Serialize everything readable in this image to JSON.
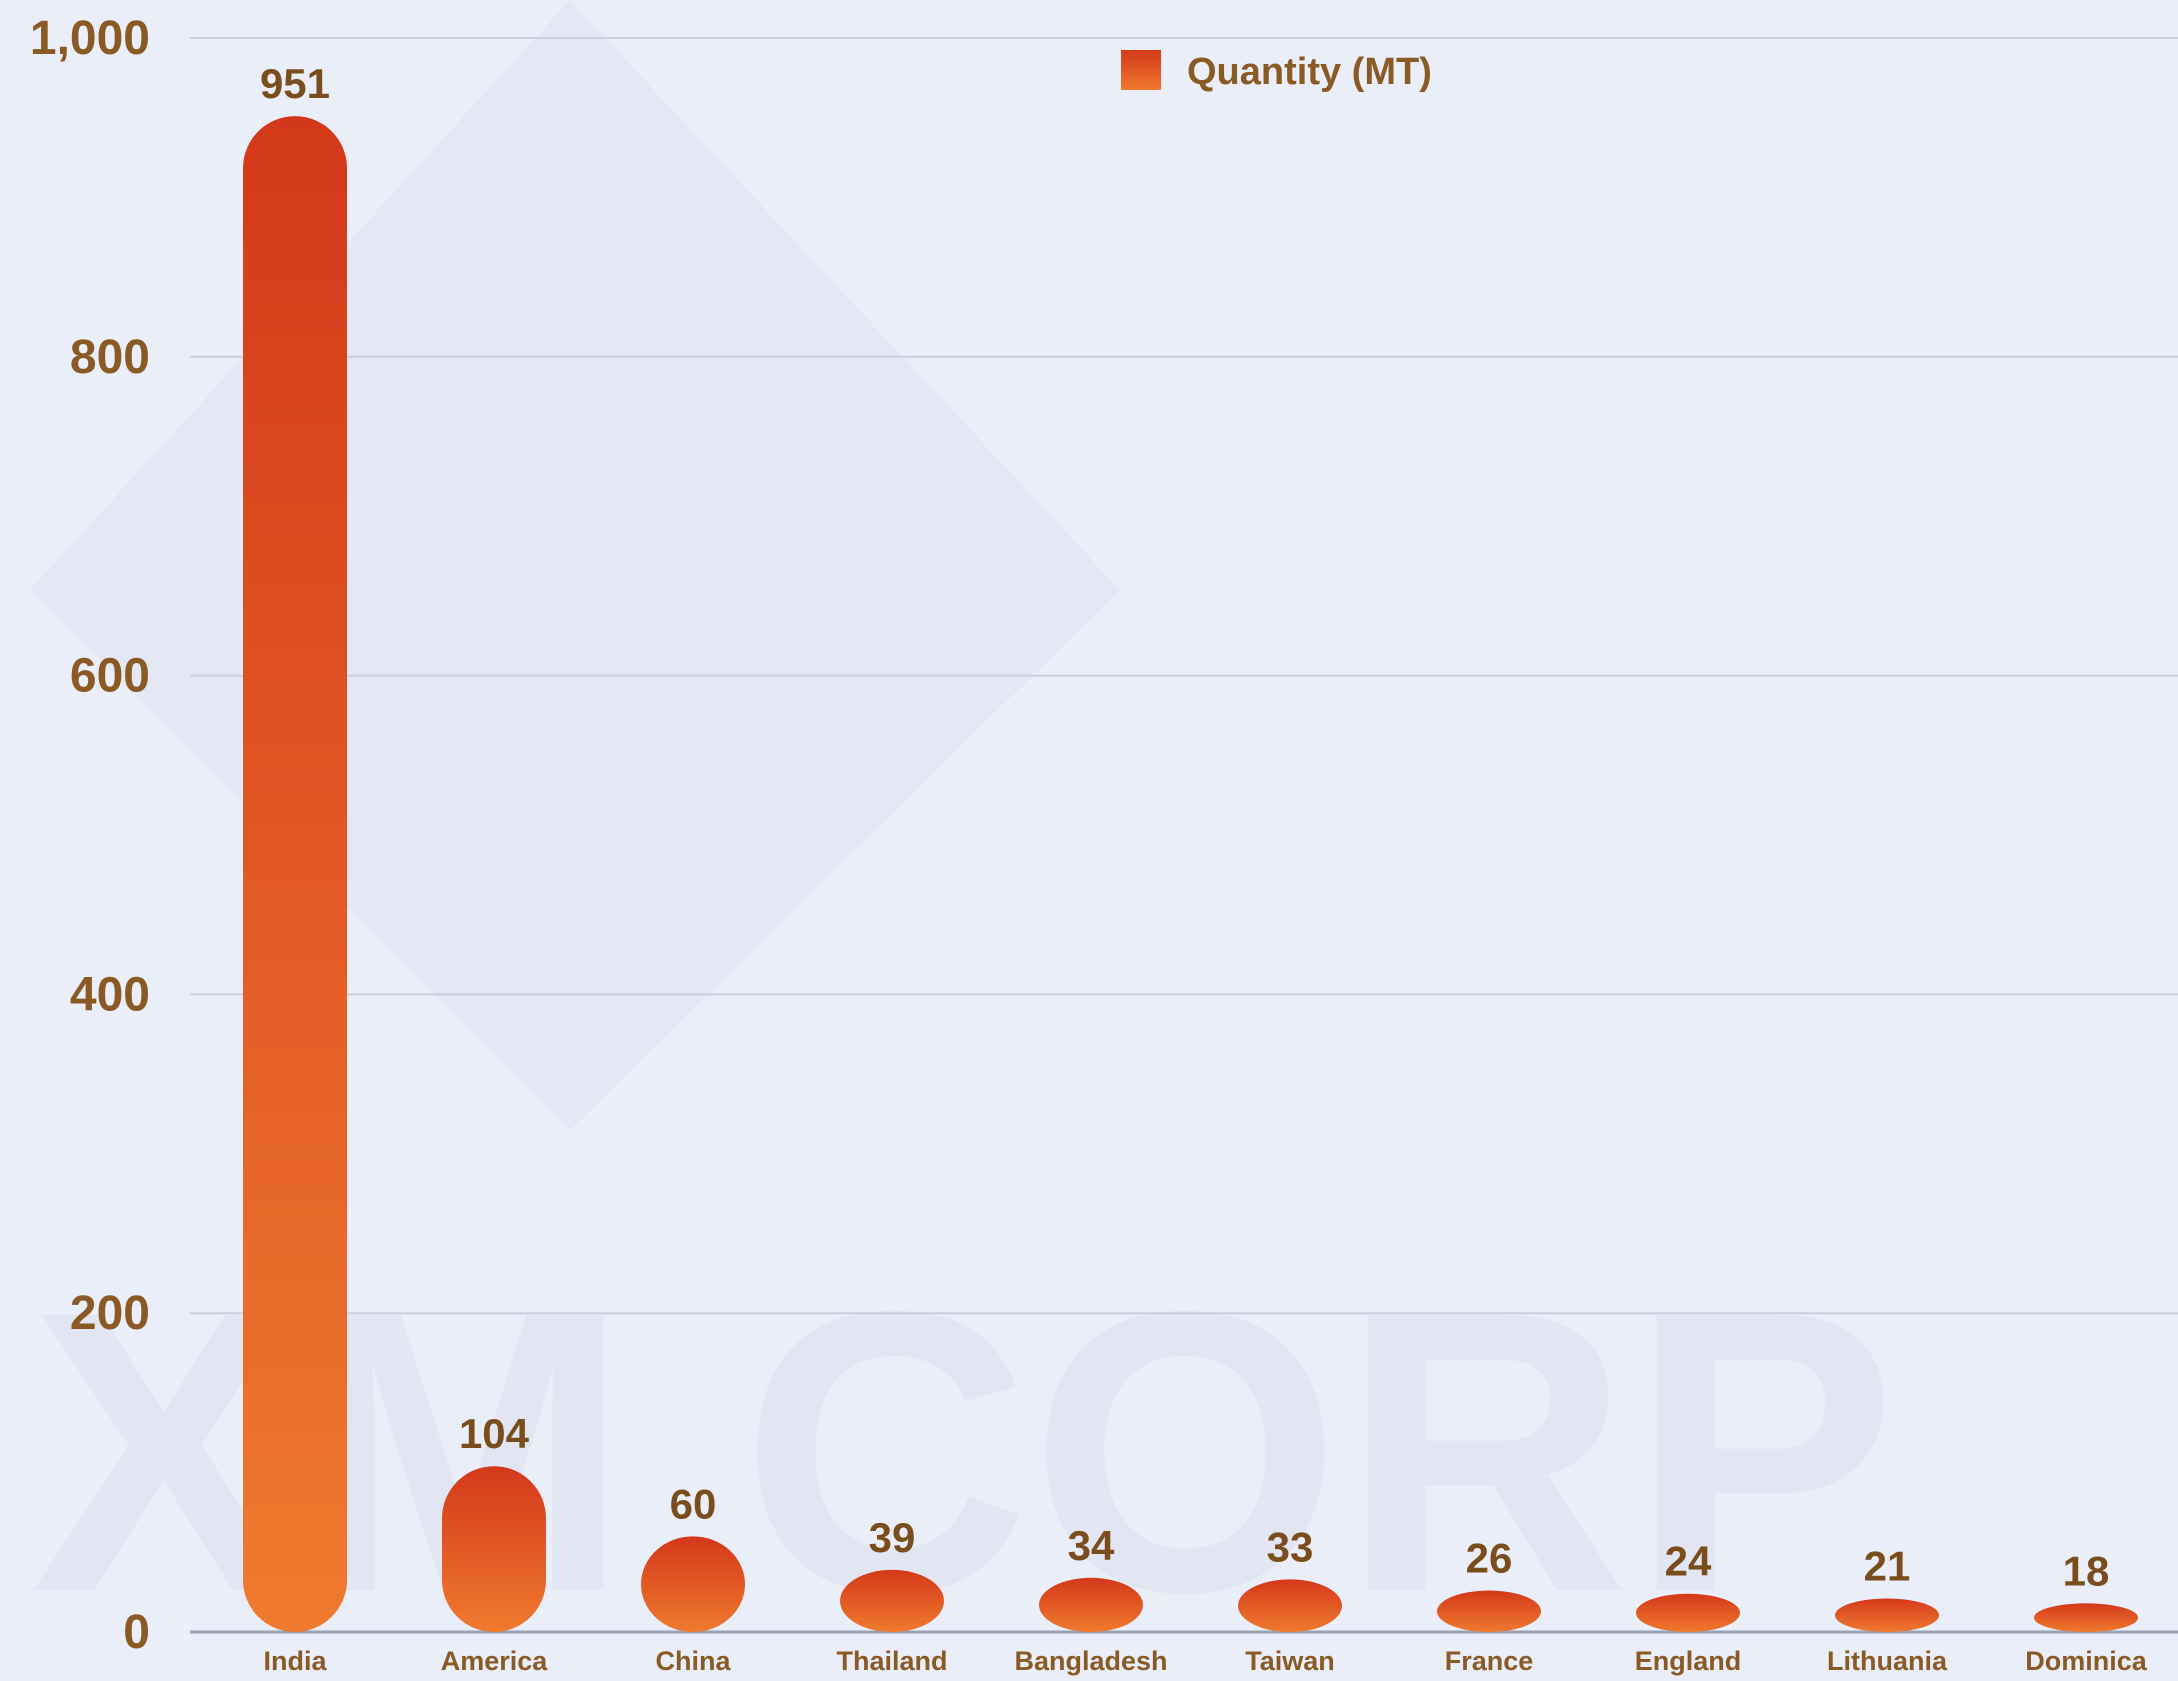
{
  "watermark": {
    "text": "XM CORP"
  },
  "colors": {
    "background": "#eaeef9",
    "bar_top": "#d4381a",
    "bar_bottom": "#ef7a2e",
    "label_text": "#8a5a24",
    "value_text": "#7a4e1c",
    "grid": "#c9cfdc",
    "baseline": "#9aa3b3"
  },
  "chart_data": {
    "type": "bar",
    "title": "",
    "xlabel": "",
    "ylabel": "",
    "ylim": [
      0,
      1000
    ],
    "yticks": [
      0,
      200,
      400,
      600,
      800,
      1000
    ],
    "ytick_labels": [
      "0",
      "200",
      "400",
      "600",
      "800",
      "1,000"
    ],
    "grid": true,
    "legend_position": "top-center",
    "categories": [
      "India",
      "America",
      "China",
      "Thailand",
      "Bangladesh",
      "Taiwan",
      "France",
      "England",
      "Lithuania",
      "Dominica"
    ],
    "series": [
      {
        "name": "Quantity (MT)",
        "values": [
          951,
          104,
          60,
          39,
          34,
          33,
          26,
          24,
          21,
          18
        ],
        "data_labels": [
          "951",
          "104",
          "60",
          "39",
          "34",
          "33",
          "26",
          "24",
          "21",
          "18"
        ]
      }
    ]
  }
}
